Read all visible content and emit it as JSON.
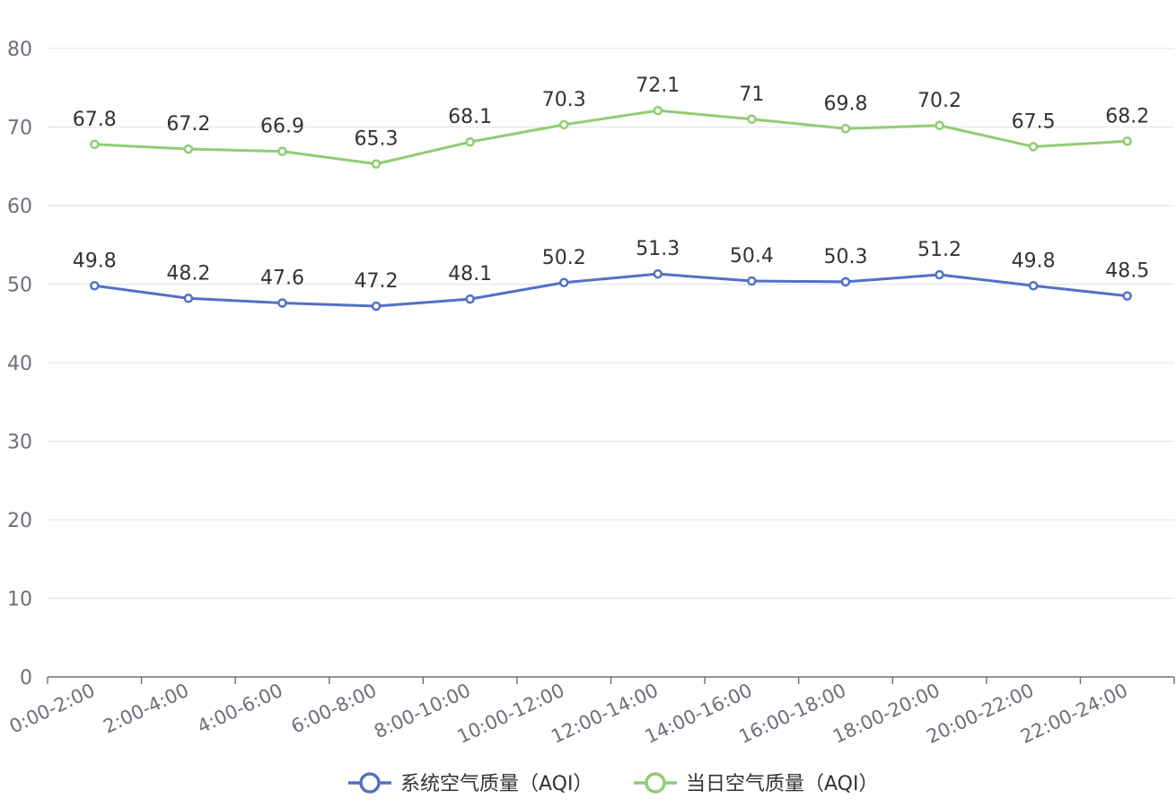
{
  "chart_data": {
    "type": "line",
    "categories": [
      "0:00-2:00",
      "2:00-4:00",
      "4:00-6:00",
      "6:00-8:00",
      "8:00-10:00",
      "10:00-12:00",
      "12:00-14:00",
      "14:00-16:00",
      "16:00-18:00",
      "18:00-20:00",
      "20:00-22:00",
      "22:00-24:00"
    ],
    "series": [
      {
        "name": "系统空气质量（AQI）",
        "color": "#5470c6",
        "values": [
          49.8,
          48.2,
          47.6,
          47.2,
          48.1,
          50.2,
          51.3,
          50.4,
          50.3,
          51.2,
          49.8,
          48.5
        ]
      },
      {
        "name": "当日空气质量（AQI）",
        "color": "#91cc75",
        "values": [
          67.8,
          67.2,
          66.9,
          65.3,
          68.1,
          70.3,
          72.1,
          71,
          69.8,
          70.2,
          67.5,
          68.2
        ]
      }
    ],
    "y_ticks": [
      0,
      10,
      20,
      30,
      40,
      50,
      60,
      70,
      80
    ],
    "ylim": [
      0,
      80
    ],
    "grid": true,
    "legend_position": "bottom-center"
  }
}
